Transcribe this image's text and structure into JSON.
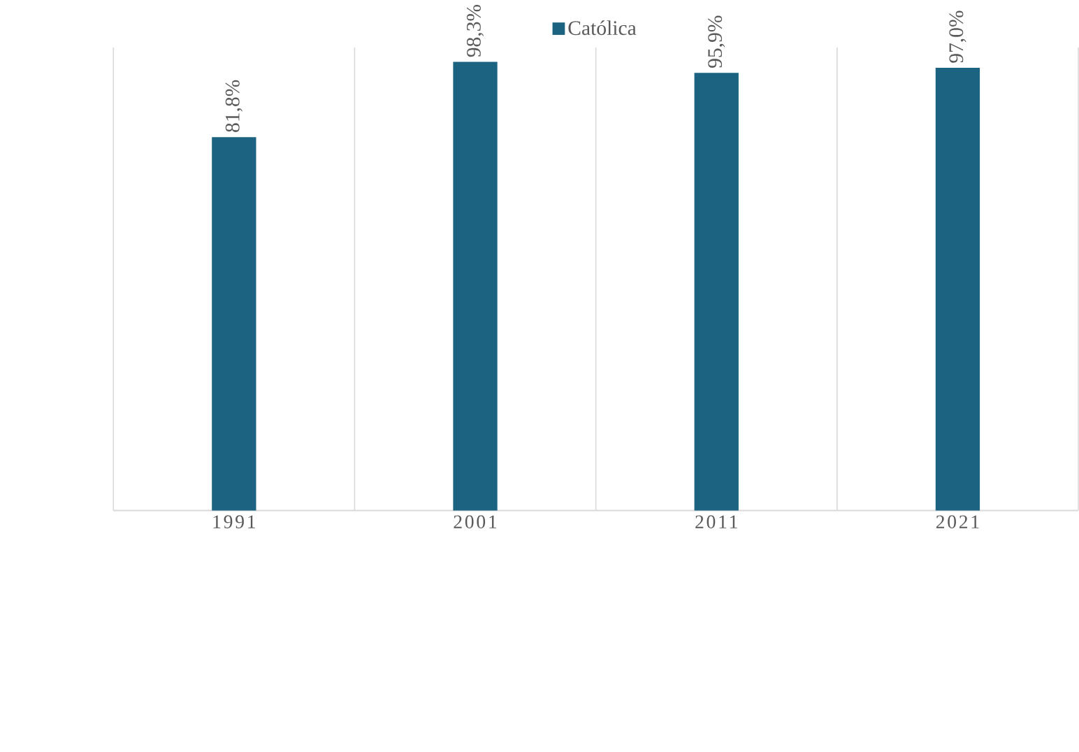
{
  "chart_data": {
    "type": "bar",
    "categories": [
      "1991",
      "2001",
      "2011",
      "2021"
    ],
    "series": [
      {
        "name": "Católica",
        "color": "#1b6381",
        "values": [
          81.8,
          98.3,
          95.9,
          97.0
        ],
        "value_labels": [
          "81,8%",
          "98,3%",
          "95,9%",
          "97,0%"
        ]
      }
    ],
    "ylim": [
      0,
      101.5
    ],
    "tick_labels": "x",
    "grid": "x",
    "legend": "top"
  }
}
